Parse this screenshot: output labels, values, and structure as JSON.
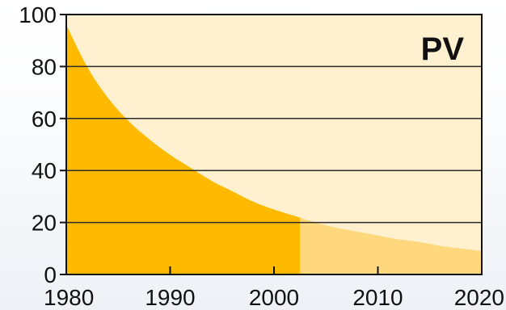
{
  "chart_data": {
    "type": "area",
    "title": "PV",
    "xlabel": "",
    "ylabel": "",
    "xlim": [
      1980,
      2020
    ],
    "ylim": [
      0,
      100
    ],
    "x_ticks": [
      "1980",
      "1990",
      "2000",
      "2010",
      "2020"
    ],
    "y_ticks": [
      "0",
      "20",
      "40",
      "60",
      "80",
      "100"
    ],
    "grid": "horizontal",
    "highlight_until_x": 2002.5,
    "series": [
      {
        "x": [
          1980,
          1982,
          1984,
          1986,
          1988,
          1990,
          1992,
          1994,
          1996,
          1998,
          2000,
          2002,
          2004,
          2006,
          2008,
          2010,
          2012,
          2014,
          2016,
          2018,
          2020
        ],
        "values": [
          96,
          80,
          68,
          59,
          52,
          46,
          41,
          36,
          32,
          28,
          25,
          22.5,
          20,
          18,
          16.5,
          15,
          13.5,
          12.5,
          11,
          10,
          9
        ]
      }
    ],
    "colors": {
      "plot_background": "#fff0cf",
      "area_highlight": "#ffba00",
      "area_rest": "#ffd77c",
      "grid": "#2a2a2a",
      "axis": "#111111"
    }
  }
}
